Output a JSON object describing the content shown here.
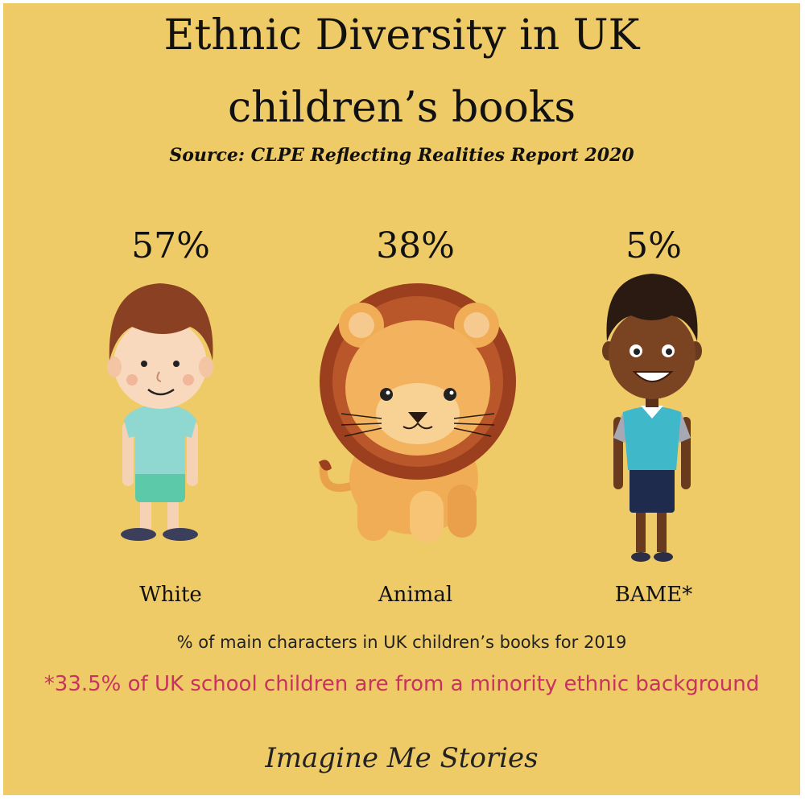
{
  "header": {
    "title_line1": "Ethnic Diversity in UK",
    "title_line2": "children’s books",
    "source": "Source: CLPE Reflecting Realities Report 2020"
  },
  "chart_data": {
    "type": "table",
    "categories": [
      "White",
      "Animal",
      "BAME*"
    ],
    "values": [
      57,
      38,
      5
    ],
    "value_labels": [
      "57%",
      "38%",
      "5%"
    ],
    "caption": "% of main characters in UK children’s books for 2019",
    "footnote": "*33.5% of UK school children are from a minority ethnic background"
  },
  "colors": {
    "background": "#eecb66",
    "footnote": "#c8325f"
  },
  "icons": [
    "white-boy-illustration",
    "lion-illustration",
    "bame-boy-illustration"
  ],
  "brand": "Imagine Me Stories"
}
